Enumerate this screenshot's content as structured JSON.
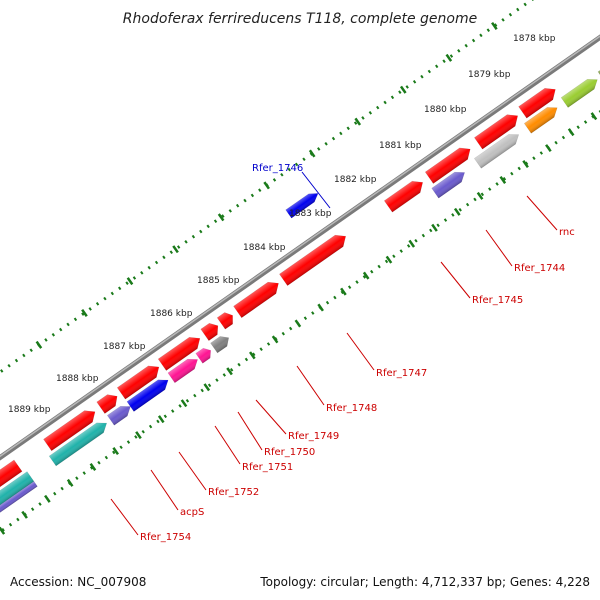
{
  "title": "Rhodoferax ferrireducens T118, complete genome",
  "footer": {
    "accession": "Accession: NC_007908",
    "summary": "Topology: circular; Length: 4,712,337 bp; Genes: 4,228"
  },
  "kbp_ticks": [
    "1878 kbp",
    "1879 kbp",
    "1880 kbp",
    "1881 kbp",
    "1882 kbp",
    "1883 kbp",
    "1884 kbp",
    "1885 kbp",
    "1886 kbp",
    "1887 kbp",
    "1888 kbp",
    "1889 kbp"
  ],
  "gene_labels": [
    "Rfer_1746",
    "rnc",
    "Rfer_1744",
    "Rfer_1745",
    "Rfer_1747",
    "Rfer_1748",
    "Rfer_1749",
    "Rfer_1750",
    "Rfer_1751",
    "Rfer_1752",
    "acpS",
    "Rfer_1754"
  ],
  "colors": {
    "gene_red": "#ff0000",
    "label_red": "#cc0000",
    "label_blue": "#0000cc",
    "backbone": "#808080",
    "tick_green": "#1a7a1a",
    "blue": "#0000ee",
    "slate_blue": "#6a5acd",
    "light_gray": "#c0c0c0",
    "dark_gray": "#808080",
    "orange": "#ff8c00",
    "yellow_green": "#9acd32",
    "magenta": "#ff1493",
    "cyan": "#20b2aa",
    "olive": "#6b8e23"
  }
}
